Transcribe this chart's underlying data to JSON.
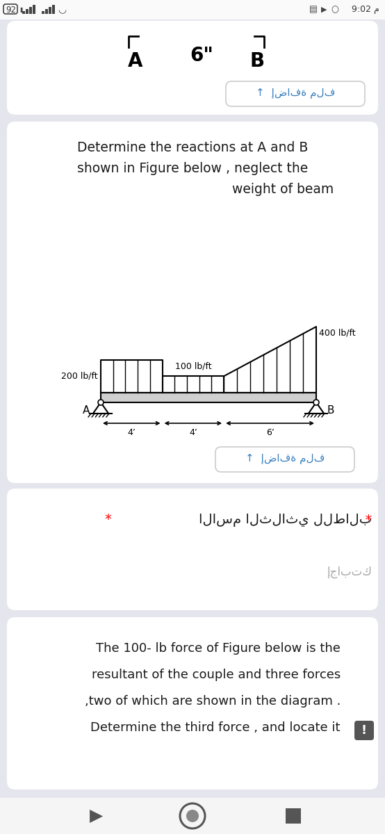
{
  "bg_color": "#e5e5ed",
  "card_color": "#ffffff",
  "status_bar_bg": "#ffffff",
  "status_time": "9:02 م",
  "status_battery": "92",
  "section1": {
    "label_A": "A",
    "label_B": "B",
    "label_6": "6\"",
    "upload_text": "إضافة ملف"
  },
  "section2": {
    "title_line1": "Determine the reactions at A and B",
    "title_line2": "shown in Figure below , neglect the",
    "title_line3": "weight of beam",
    "load_200": "200 lb/ft",
    "load_400": "400 lb/ft",
    "load_100": "100 lb/ft",
    "dim_4a": "4’",
    "dim_4b": "4’",
    "dim_6": "6’",
    "label_A": "A",
    "label_B": "B",
    "upload_text": "إضافة ملف"
  },
  "section3": {
    "label": "الاسم الثلاثي للطالب",
    "asterisk": "*",
    "placeholder": "إجابتك"
  },
  "section4": {
    "line1": "The 100- lb force of Figure below is the",
    "line2": "resultant of the couple and three forces",
    "line3": ",two of which are shown in the diagram .",
    "line4": "Determine the third force , and locate it"
  },
  "nav_bg": "#f5f5f5"
}
